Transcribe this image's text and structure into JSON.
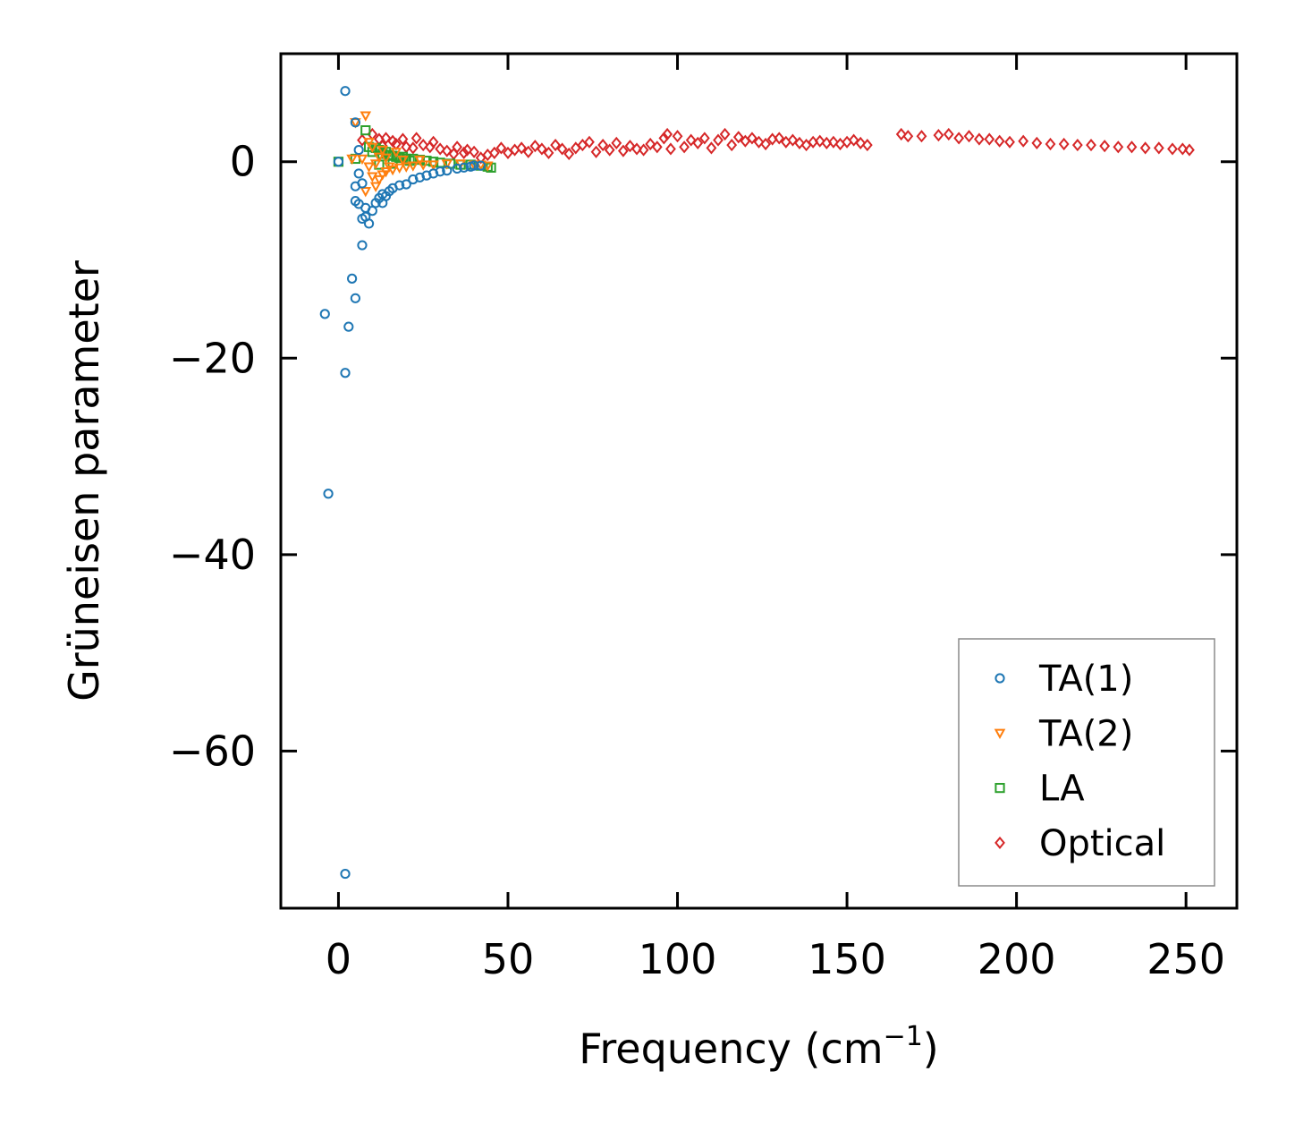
{
  "chart_data": {
    "type": "scatter",
    "xlabel": "Frequency (cm",
    "xlabel_sup": "−1",
    "xlabel_close": ")",
    "ylabel": "Grüneisen parameter",
    "xlim": [
      -17,
      265
    ],
    "ylim": [
      -76,
      11
    ],
    "xticks": [
      0,
      50,
      100,
      150,
      200,
      250
    ],
    "xtick_labels": [
      "0",
      "50",
      "100",
      "150",
      "200",
      "250"
    ],
    "yticks": [
      0,
      -20,
      -40,
      -60
    ],
    "ytick_labels": [
      "0",
      "−20",
      "−40",
      "−60"
    ],
    "legend_position": "lower-right",
    "series": [
      {
        "name": "TA(1)",
        "marker": "circle",
        "color": "#1f77b4",
        "points": [
          [
            0,
            0
          ],
          [
            2,
            7.2
          ],
          [
            -4,
            -15.5
          ],
          [
            -3,
            -33.8
          ],
          [
            2,
            -21.5
          ],
          [
            3,
            -16.8
          ],
          [
            5,
            -13.9
          ],
          [
            4,
            -11.9
          ],
          [
            7,
            -8.5
          ],
          [
            2,
            -72.5
          ],
          [
            5,
            4
          ],
          [
            6,
            1.2
          ],
          [
            6,
            -1.2
          ],
          [
            5,
            -2.5
          ],
          [
            7,
            -2.2
          ],
          [
            5,
            -4
          ],
          [
            6,
            -4.3
          ],
          [
            7,
            -5.8
          ],
          [
            8,
            -5.6
          ],
          [
            9,
            -6.3
          ],
          [
            8,
            -4.7
          ],
          [
            10,
            -5
          ],
          [
            11,
            -4.2
          ],
          [
            12,
            -3.7
          ],
          [
            13,
            -3.3
          ],
          [
            14,
            -3.5
          ],
          [
            13,
            -4.2
          ],
          [
            15,
            -3
          ],
          [
            16,
            -2.7
          ],
          [
            18,
            -2.4
          ],
          [
            20,
            -2.3
          ],
          [
            22,
            -1.8
          ],
          [
            24,
            -1.6
          ],
          [
            26,
            -1.4
          ],
          [
            28,
            -1.2
          ],
          [
            30,
            -1
          ],
          [
            32,
            -0.9
          ],
          [
            35,
            -0.7
          ],
          [
            37,
            -0.6
          ],
          [
            39,
            -0.5
          ],
          [
            40,
            -0.4
          ],
          [
            42,
            -0.4
          ]
        ]
      },
      {
        "name": "TA(2)",
        "marker": "triangle-down",
        "color": "#ff7f0e",
        "points": [
          [
            4,
            0.3
          ],
          [
            5,
            4
          ],
          [
            7,
            0.3
          ],
          [
            8,
            4.7
          ],
          [
            9,
            2
          ],
          [
            10,
            1.5
          ],
          [
            9,
            -0.5
          ],
          [
            10,
            -1.5
          ],
          [
            8,
            -3
          ],
          [
            11,
            -2.5
          ],
          [
            12,
            -1.8
          ],
          [
            13,
            -1.3
          ],
          [
            14,
            -1
          ],
          [
            16,
            -0.8
          ],
          [
            18,
            -0.6
          ],
          [
            20,
            -0.5
          ],
          [
            22,
            -0.4
          ],
          [
            25,
            -0.3
          ],
          [
            28,
            -0.3
          ],
          [
            32,
            -0.2
          ],
          [
            36,
            -0.2
          ],
          [
            40,
            -0.3
          ],
          [
            42,
            -0.3
          ],
          [
            44,
            -0.4
          ],
          [
            12,
            0.5
          ],
          [
            14,
            0.4
          ],
          [
            17,
            1.0
          ],
          [
            15,
            -0.5
          ],
          [
            19,
            0.2
          ],
          [
            24,
            0.2
          ],
          [
            11,
            -0.2
          ],
          [
            13,
            1.2
          ]
        ]
      },
      {
        "name": "LA",
        "marker": "square",
        "color": "#2ca02c",
        "points": [
          [
            0,
            0
          ],
          [
            5,
            0.3
          ],
          [
            8,
            3.2
          ],
          [
            9,
            1.5
          ],
          [
            10,
            1
          ],
          [
            11,
            1.4
          ],
          [
            12,
            1.2
          ],
          [
            13,
            0.8
          ],
          [
            14,
            1
          ],
          [
            15,
            0.7
          ],
          [
            16,
            0.6
          ],
          [
            17,
            0.5
          ],
          [
            18,
            0.4
          ],
          [
            19,
            0.5
          ],
          [
            20,
            0.3
          ],
          [
            22,
            0.3
          ],
          [
            24,
            0.2
          ],
          [
            26,
            0.1
          ],
          [
            28,
            0
          ],
          [
            30,
            -0.1
          ],
          [
            33,
            -0.2
          ],
          [
            36,
            -0.3
          ],
          [
            39,
            -0.3
          ],
          [
            42,
            -0.4
          ],
          [
            44,
            -0.5
          ],
          [
            45,
            -0.6
          ],
          [
            12,
            -0.3
          ],
          [
            16,
            -0.2
          ],
          [
            21,
            0.1
          ]
        ]
      },
      {
        "name": "Optical",
        "marker": "diamond",
        "color": "#d62728",
        "points": [
          [
            7,
            2.2
          ],
          [
            10,
            2.8
          ],
          [
            12,
            2.3
          ],
          [
            13,
            1.6
          ],
          [
            14,
            2.4
          ],
          [
            16,
            2.1
          ],
          [
            17,
            1.8
          ],
          [
            19,
            2.3
          ],
          [
            20,
            1.5
          ],
          [
            22,
            1.4
          ],
          [
            23,
            2.4
          ],
          [
            25,
            1.7
          ],
          [
            27,
            1.5
          ],
          [
            28,
            2
          ],
          [
            30,
            1.3
          ],
          [
            32,
            1.1
          ],
          [
            34,
            0.8
          ],
          [
            35,
            1.5
          ],
          [
            37,
            0.9
          ],
          [
            38,
            1.2
          ],
          [
            40,
            1
          ],
          [
            42,
            0.4
          ],
          [
            44,
            0.7
          ],
          [
            46,
            0.9
          ],
          [
            48,
            1.4
          ],
          [
            50,
            0.9
          ],
          [
            52,
            1.2
          ],
          [
            54,
            1.4
          ],
          [
            56,
            1
          ],
          [
            58,
            1.6
          ],
          [
            60,
            1.3
          ],
          [
            62,
            0.9
          ],
          [
            64,
            1.7
          ],
          [
            66,
            1.3
          ],
          [
            68,
            0.8
          ],
          [
            70,
            1.4
          ],
          [
            72,
            1.7
          ],
          [
            74,
            2
          ],
          [
            76,
            1
          ],
          [
            78,
            1.7
          ],
          [
            80,
            1.2
          ],
          [
            82,
            1.9
          ],
          [
            84,
            1.1
          ],
          [
            86,
            1.6
          ],
          [
            88,
            1.3
          ],
          [
            90,
            1.2
          ],
          [
            92,
            1.8
          ],
          [
            94,
            1.5
          ],
          [
            96,
            2.4
          ],
          [
            97,
            2.8
          ],
          [
            98,
            1.3
          ],
          [
            100,
            2.6
          ],
          [
            102,
            1.5
          ],
          [
            104,
            2.2
          ],
          [
            106,
            1.9
          ],
          [
            108,
            2.4
          ],
          [
            110,
            1.4
          ],
          [
            112,
            2.2
          ],
          [
            114,
            2.8
          ],
          [
            116,
            1.7
          ],
          [
            118,
            2.5
          ],
          [
            120,
            2.1
          ],
          [
            122,
            2.4
          ],
          [
            124,
            2
          ],
          [
            126,
            1.8
          ],
          [
            128,
            2.3
          ],
          [
            130,
            2.4
          ],
          [
            132,
            2
          ],
          [
            134,
            2.2
          ],
          [
            136,
            1.9
          ],
          [
            138,
            1.7
          ],
          [
            140,
            2
          ],
          [
            142,
            2.1
          ],
          [
            144,
            1.9
          ],
          [
            146,
            2
          ],
          [
            148,
            1.8
          ],
          [
            150,
            2
          ],
          [
            152,
            2.2
          ],
          [
            154,
            1.9
          ],
          [
            156,
            1.7
          ],
          [
            166,
            2.8
          ],
          [
            168,
            2.6
          ],
          [
            172,
            2.6
          ],
          [
            177,
            2.7
          ],
          [
            180,
            2.8
          ],
          [
            183,
            2.4
          ],
          [
            186,
            2.6
          ],
          [
            189,
            2.3
          ],
          [
            192,
            2.3
          ],
          [
            195,
            2.1
          ],
          [
            198,
            2
          ],
          [
            202,
            2.1
          ],
          [
            206,
            1.9
          ],
          [
            210,
            1.8
          ],
          [
            214,
            1.8
          ],
          [
            218,
            1.7
          ],
          [
            222,
            1.7
          ],
          [
            226,
            1.6
          ],
          [
            230,
            1.5
          ],
          [
            234,
            1.5
          ],
          [
            238,
            1.4
          ],
          [
            242,
            1.4
          ],
          [
            246,
            1.3
          ],
          [
            249,
            1.3
          ],
          [
            251,
            1.2
          ]
        ]
      }
    ]
  }
}
